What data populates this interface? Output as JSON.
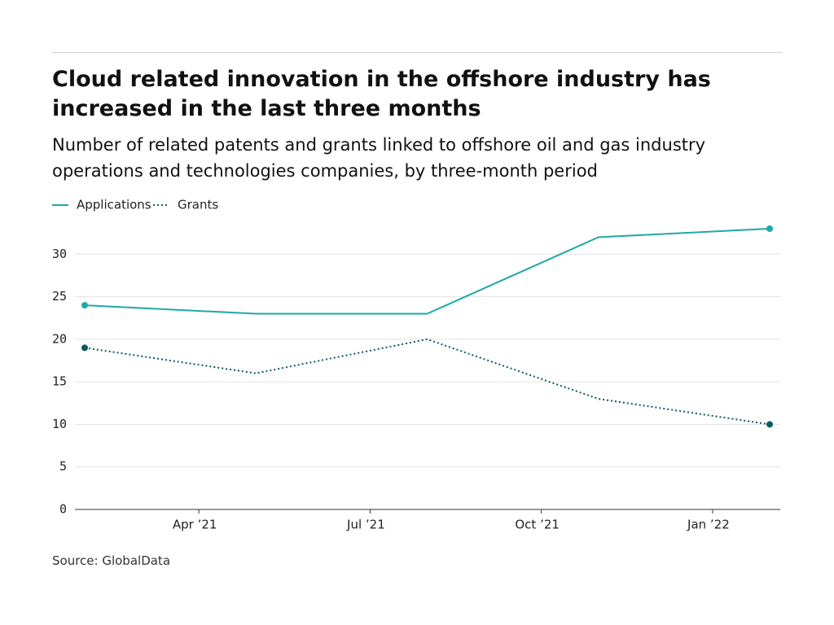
{
  "chart_data": {
    "type": "line",
    "title": "Cloud related innovation in the offshore industry has increased in the last three months",
    "subtitle": "Number of related patents and grants linked to offshore oil and gas industry operations and technologies companies, by three-month period",
    "source": "Source: GlobalData",
    "x": [
      "2021-02",
      "2021-05",
      "2021-08",
      "2021-11",
      "2022-02"
    ],
    "xlim": [
      "2021-02",
      "2022-02"
    ],
    "xticks": [
      {
        "value": "2021-04",
        "label": "Apr ’21"
      },
      {
        "value": "2021-07",
        "label": "Jul ’21"
      },
      {
        "value": "2021-10",
        "label": "Oct ’21"
      },
      {
        "value": "2022-01",
        "label": "Jan ’22"
      }
    ],
    "ylim": [
      0,
      33
    ],
    "yticks": [
      0,
      5,
      10,
      15,
      20,
      25,
      30
    ],
    "grid": true,
    "series": [
      {
        "name": "Applications",
        "color": "#1fa8a8",
        "style": "solid",
        "values": [
          24,
          23,
          23,
          32,
          33
        ]
      },
      {
        "name": "Grants",
        "color": "#0c5a5f",
        "style": "dotted",
        "values": [
          19,
          16,
          20,
          13,
          10
        ]
      }
    ]
  }
}
